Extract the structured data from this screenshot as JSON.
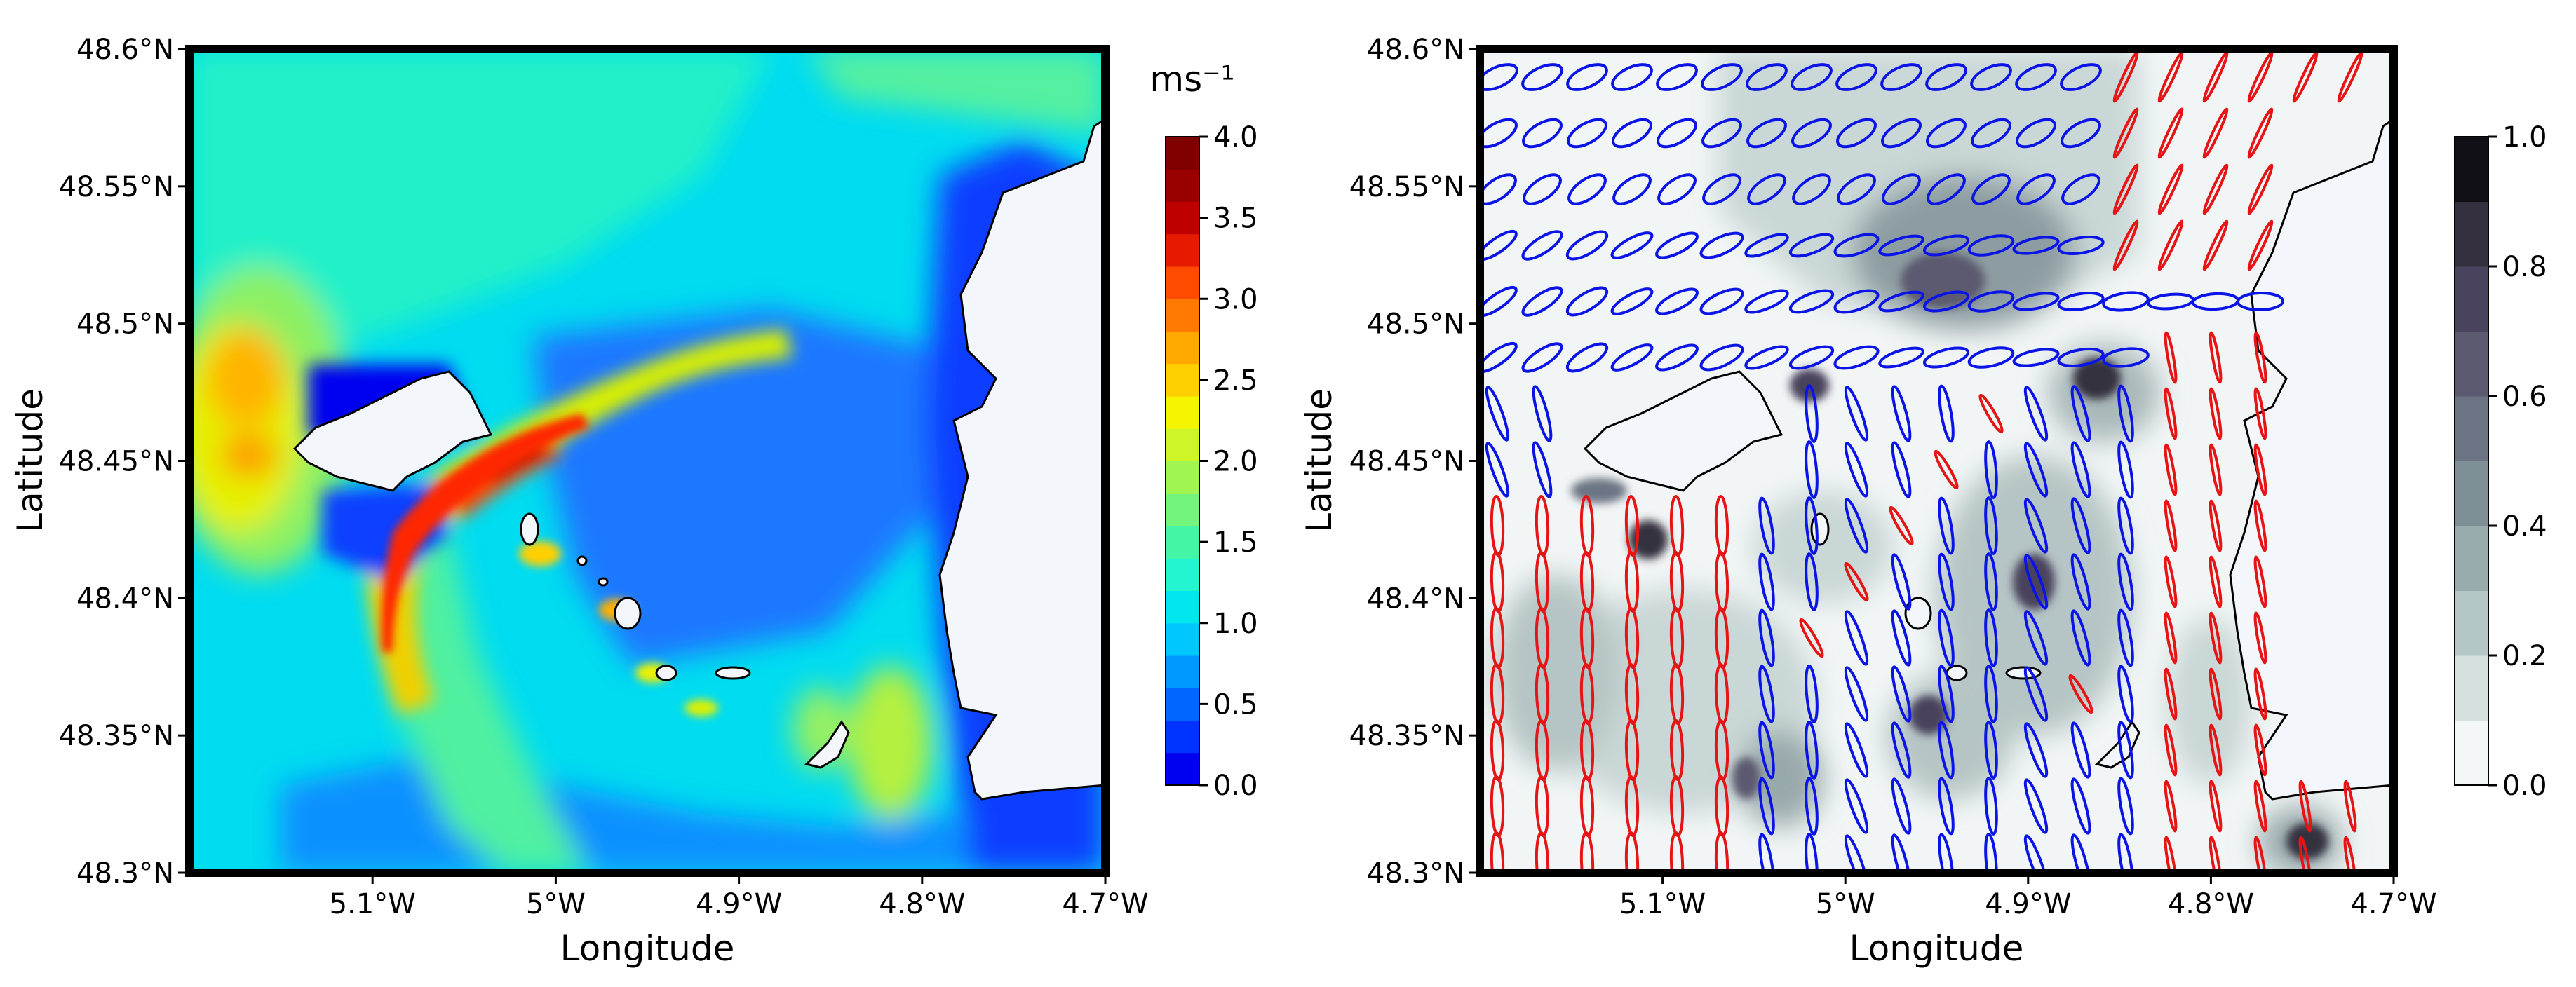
{
  "chart_data": [
    {
      "type": "heatmap",
      "subtype": "filled-contour map",
      "xlabel": "Longitude",
      "ylabel": "Latitude",
      "xlim": [
        -5.2,
        -4.7
      ],
      "ylim": [
        48.3,
        48.6
      ],
      "xticks": [
        {
          "value": -5.1,
          "label": "5.1°W"
        },
        {
          "value": -5.0,
          "label": "5°W"
        },
        {
          "value": -4.9,
          "label": "4.9°W"
        },
        {
          "value": -4.8,
          "label": "4.8°W"
        },
        {
          "value": -4.7,
          "label": "4.7°W"
        }
      ],
      "yticks": [
        {
          "value": 48.3,
          "label": "48.3°N"
        },
        {
          "value": 48.35,
          "label": "48.35°N"
        },
        {
          "value": 48.4,
          "label": "48.4°N"
        },
        {
          "value": 48.45,
          "label": "48.45°N"
        },
        {
          "value": 48.5,
          "label": "48.5°N"
        },
        {
          "value": 48.55,
          "label": "48.55°N"
        },
        {
          "value": 48.6,
          "label": "48.6°N"
        }
      ],
      "colorbar": {
        "title": "ms⁻¹",
        "min": 0.0,
        "max": 4.0,
        "ticks": [
          {
            "value": 0.0,
            "label": "0.0"
          },
          {
            "value": 0.5,
            "label": "0.5"
          },
          {
            "value": 1.0,
            "label": "1.0"
          },
          {
            "value": 1.5,
            "label": "1.5"
          },
          {
            "value": 2.0,
            "label": "2.0"
          },
          {
            "value": 2.5,
            "label": "2.5"
          },
          {
            "value": 3.0,
            "label": "3.0"
          },
          {
            "value": 3.5,
            "label": "3.5"
          },
          {
            "value": 4.0,
            "label": "4.0"
          }
        ],
        "colors": [
          "#0000f0",
          "#0033ff",
          "#0066ff",
          "#0099ff",
          "#00c8ff",
          "#00e8ee",
          "#22f5cf",
          "#45f5a6",
          "#72f57a",
          "#a0f550",
          "#cdf528",
          "#f5f500",
          "#ffd000",
          "#ffa800",
          "#ff7a00",
          "#ff4a00",
          "#e61a00",
          "#bf0000",
          "#990000",
          "#800000"
        ]
      },
      "grid": false
    },
    {
      "type": "heatmap",
      "subtype": "filled-contour map with tidal ellipses",
      "xlabel": "Longitude",
      "ylabel": "Latitude",
      "xlim": [
        -5.2,
        -4.7
      ],
      "ylim": [
        48.3,
        48.6
      ],
      "xticks": [
        {
          "value": -5.1,
          "label": "5.1°W"
        },
        {
          "value": -5.0,
          "label": "5°W"
        },
        {
          "value": -4.9,
          "label": "4.9°W"
        },
        {
          "value": -4.8,
          "label": "4.8°W"
        },
        {
          "value": -4.7,
          "label": "4.7°W"
        }
      ],
      "yticks": [
        {
          "value": 48.3,
          "label": "48.3°N"
        },
        {
          "value": 48.35,
          "label": "48.35°N"
        },
        {
          "value": 48.4,
          "label": "48.4°N"
        },
        {
          "value": 48.45,
          "label": "48.45°N"
        },
        {
          "value": 48.5,
          "label": "48.5°N"
        },
        {
          "value": 48.55,
          "label": "48.55°N"
        },
        {
          "value": 48.6,
          "label": "48.6°N"
        }
      ],
      "colorbar": {
        "title": "",
        "min": 0.0,
        "max": 1.0,
        "ticks": [
          {
            "value": 0.0,
            "label": "0.0"
          },
          {
            "value": 0.2,
            "label": "0.2"
          },
          {
            "value": 0.4,
            "label": "0.4"
          },
          {
            "value": 0.6,
            "label": "0.6"
          },
          {
            "value": 0.8,
            "label": "0.8"
          },
          {
            "value": 1.0,
            "label": "1.0"
          }
        ],
        "colors": [
          "#f4f7f7",
          "#d5e0df",
          "#b5c6c6",
          "#98acae",
          "#7e8f95",
          "#6c7483",
          "#5c5a70",
          "#4a435d",
          "#34303f",
          "#101016"
        ]
      },
      "ellipse_colors": {
        "counter_clockwise": "#0a14e6",
        "clockwise": "#e61414"
      },
      "grid": false
    }
  ],
  "colors": {
    "land_fill": "#f3f7fb",
    "coastline": "#000000",
    "frame": "#000000",
    "ellipse_blue": "#0a14e6",
    "ellipse_red": "#e61414"
  }
}
